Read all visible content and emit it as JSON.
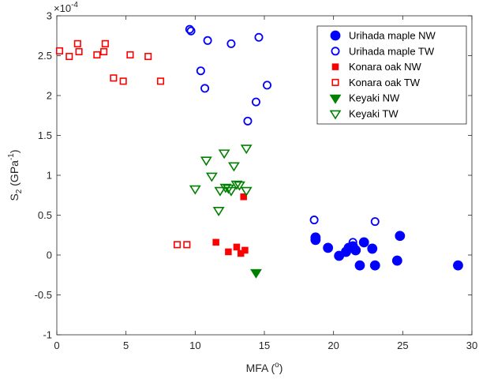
{
  "chart_data": {
    "type": "scatter",
    "title": "",
    "xlabel_base": "MFA (",
    "xlabel_sup": "o",
    "xlabel_end": ")",
    "ylabel_main": "S",
    "ylabel_sub": "2",
    "ylabel_mid": " (GPa",
    "ylabel_sup": "-1",
    "ylabel_end": ")",
    "y_exponent_base": "×10",
    "y_exponent_power": "-4",
    "xlim": [
      0,
      30
    ],
    "ylim": [
      -1,
      3
    ],
    "x_ticks": [
      "0",
      "5",
      "10",
      "15",
      "20",
      "25",
      "30"
    ],
    "y_ticks": [
      "-1",
      "-0.5",
      "0",
      "0.5",
      "1",
      "1.5",
      "2",
      "2.5",
      "3"
    ],
    "legend_position": "top-right",
    "grid": false,
    "series": [
      {
        "name": "Urihada maple NW",
        "marker": "circle",
        "fill": true,
        "color": "#0000ff",
        "points": [
          [
            18.7,
            0.22
          ],
          [
            18.7,
            0.19
          ],
          [
            19.6,
            0.09
          ],
          [
            20.4,
            -0.01
          ],
          [
            20.9,
            0.04
          ],
          [
            21.1,
            0.09
          ],
          [
            21.4,
            0.11
          ],
          [
            21.6,
            0.06
          ],
          [
            21.9,
            -0.13
          ],
          [
            22.2,
            0.16
          ],
          [
            22.8,
            0.08
          ],
          [
            23.0,
            -0.13
          ],
          [
            24.6,
            -0.07
          ],
          [
            24.8,
            0.24
          ],
          [
            29.0,
            -0.13
          ]
        ]
      },
      {
        "name": "Urihada maple TW",
        "marker": "circle",
        "fill": false,
        "color": "#0000ff",
        "points": [
          [
            9.6,
            2.83
          ],
          [
            9.7,
            2.81
          ],
          [
            10.4,
            2.31
          ],
          [
            10.7,
            2.09
          ],
          [
            10.9,
            2.69
          ],
          [
            12.6,
            2.65
          ],
          [
            13.8,
            1.68
          ],
          [
            14.4,
            1.92
          ],
          [
            14.6,
            2.73
          ],
          [
            15.2,
            2.13
          ],
          [
            18.6,
            0.44
          ],
          [
            21.4,
            0.16
          ],
          [
            23.0,
            0.42
          ]
        ]
      },
      {
        "name": "Konara oak NW",
        "marker": "square",
        "fill": true,
        "color": "#ff0000",
        "points": [
          [
            11.5,
            0.16
          ],
          [
            12.4,
            0.04
          ],
          [
            13.0,
            0.1
          ],
          [
            13.3,
            0.02
          ],
          [
            13.6,
            0.06
          ],
          [
            13.5,
            0.73
          ]
        ]
      },
      {
        "name": "Konara oak TW",
        "marker": "square",
        "fill": false,
        "color": "#ff0000",
        "points": [
          [
            0.2,
            2.56
          ],
          [
            0.9,
            2.49
          ],
          [
            1.5,
            2.65
          ],
          [
            1.6,
            2.55
          ],
          [
            2.9,
            2.51
          ],
          [
            3.4,
            2.55
          ],
          [
            3.5,
            2.65
          ],
          [
            4.1,
            2.22
          ],
          [
            4.8,
            2.18
          ],
          [
            5.3,
            2.51
          ],
          [
            6.6,
            2.49
          ],
          [
            7.5,
            2.18
          ],
          [
            8.7,
            0.13
          ],
          [
            9.4,
            0.13
          ]
        ]
      },
      {
        "name": "Keyaki NW",
        "marker": "triangle-down",
        "fill": true,
        "color": "#008000",
        "points": [
          [
            14.4,
            -0.22
          ]
        ]
      },
      {
        "name": "Keyaki TW",
        "marker": "triangle-down",
        "fill": false,
        "color": "#008000",
        "points": [
          [
            10.0,
            0.83
          ],
          [
            10.8,
            1.19
          ],
          [
            11.2,
            0.99
          ],
          [
            11.7,
            0.56
          ],
          [
            11.8,
            0.81
          ],
          [
            12.1,
            1.28
          ],
          [
            12.2,
            0.85
          ],
          [
            12.4,
            0.84
          ],
          [
            12.6,
            0.81
          ],
          [
            12.8,
            1.12
          ],
          [
            13.0,
            0.89
          ],
          [
            13.2,
            0.88
          ],
          [
            13.7,
            0.81
          ],
          [
            13.7,
            1.34
          ]
        ]
      }
    ]
  }
}
